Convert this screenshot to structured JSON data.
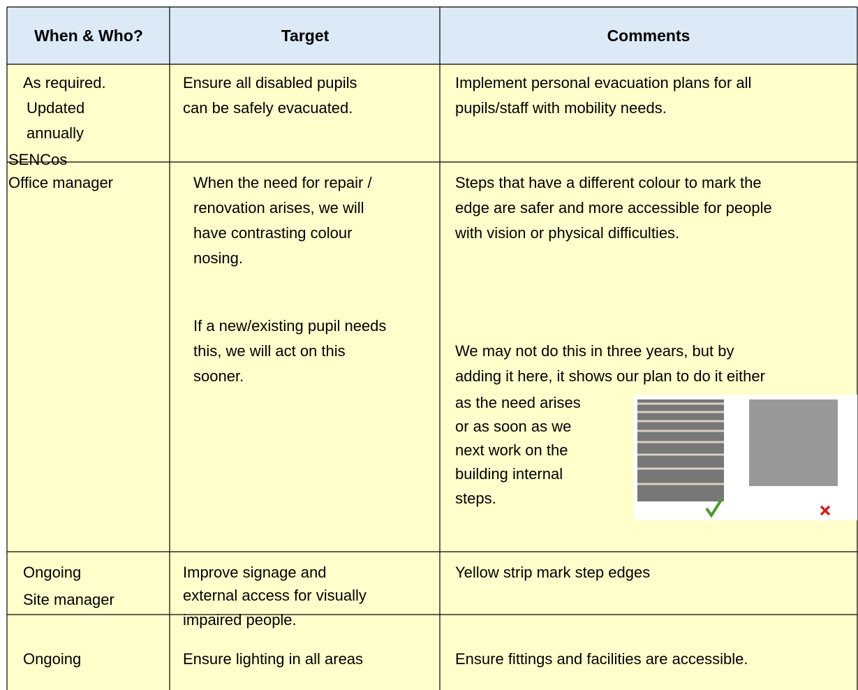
{
  "header": {
    "columns": [
      "When & Who?",
      "Target",
      "Comments"
    ]
  },
  "table": {
    "rows": [
      [
        [
          "As required.",
          "Updated",
          "annually",
          "SENCos"
        ],
        [
          "Ensure all disabled pupils",
          "can be safely evacuated."
        ],
        [
          "Implement personal evacuation plans for all",
          "pupils/staff with mobility needs."
        ]
      ],
      [
        [
          "Office manager"
        ],
        [
          "When the need for repair /",
          "renovation arises, we will",
          "have contrasting colour",
          "nosing.",
          "If a new/existing pupil needs",
          "this, we will act on this",
          "sooner."
        ],
        [
          "Steps that have a different colour to mark the",
          "edge are safer and more accessible for people",
          "with vision or physical difficulties.",
          "We may not do this in three years, but by",
          "adding it here, it shows our plan to do it either",
          "as the need arises",
          "or as soon as we",
          "next work on the",
          "building internal",
          "steps."
        ]
      ],
      [
        [
          "Ongoing",
          "Site manager"
        ],
        [
          "Improve signage and",
          "external access for visually",
          "impaired people."
        ],
        [
          "Yellow strip mark step edges"
        ]
      ],
      [
        [
          "Ongoing"
        ],
        [
          "Ensure lighting in all areas"
        ],
        [
          "Ensure fittings and facilities are accessible."
        ]
      ]
    ]
  }
}
